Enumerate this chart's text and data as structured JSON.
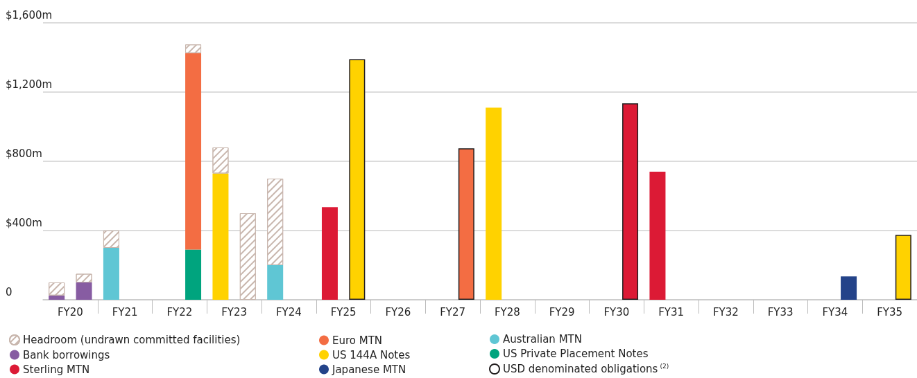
{
  "chart_data": {
    "type": "bar",
    "stacked": true,
    "categories": [
      "FY20",
      null,
      "FY21",
      null,
      "FY22",
      null,
      "FY23",
      null,
      "FY24",
      null,
      "FY25",
      null,
      "FY26",
      null,
      "FY27",
      null,
      "FY28",
      null,
      "FY29",
      null,
      "FY30",
      null,
      "FY31",
      null,
      "FY32",
      null,
      "FY33",
      null,
      "FY34",
      null,
      "FY35",
      null
    ],
    "series": [
      {
        "name": "Bank borrowings",
        "color": "#875ca2",
        "values": [
          25,
          100,
          null,
          null,
          null,
          null,
          null,
          null,
          null,
          null,
          null,
          null,
          null,
          null,
          null,
          null,
          null,
          null,
          null,
          null,
          null,
          null,
          null,
          null,
          null,
          null,
          null,
          null,
          null,
          null,
          null,
          null
        ]
      },
      {
        "name": "Australian MTN",
        "color": "#5fc6d4",
        "values": [
          null,
          null,
          300,
          null,
          null,
          null,
          null,
          null,
          200,
          null,
          null,
          null,
          null,
          null,
          null,
          null,
          null,
          null,
          null,
          null,
          null,
          null,
          null,
          null,
          null,
          null,
          null,
          null,
          null,
          null,
          null,
          null
        ]
      },
      {
        "name": "US Private Placement Notes",
        "color": "#00a47e",
        "values": [
          null,
          null,
          null,
          null,
          null,
          290,
          null,
          null,
          null,
          null,
          null,
          null,
          null,
          null,
          null,
          null,
          null,
          null,
          null,
          null,
          null,
          null,
          null,
          null,
          null,
          null,
          null,
          null,
          null,
          null,
          null,
          null
        ]
      },
      {
        "name": "Euro MTN",
        "color": "#f36d43",
        "values": [
          null,
          null,
          null,
          null,
          null,
          1135,
          null,
          null,
          null,
          null,
          null,
          null,
          null,
          null,
          null,
          null,
          null,
          null,
          null,
          null,
          null,
          null,
          null,
          null,
          null,
          null,
          null,
          null,
          null,
          null,
          null,
          null
        ]
      },
      {
        "name": "US 144A Notes",
        "color": "#ffd200",
        "values": [
          null,
          null,
          null,
          null,
          null,
          null,
          730,
          null,
          null,
          null,
          null,
          null,
          null,
          null,
          null,
          null,
          1110,
          null,
          null,
          null,
          null,
          null,
          null,
          null,
          null,
          null,
          null,
          null,
          null,
          null,
          null,
          null
        ]
      },
      {
        "name": "Sterling MTN",
        "color": "#dc1a35",
        "values": [
          null,
          null,
          null,
          null,
          null,
          null,
          null,
          null,
          null,
          null,
          535,
          null,
          null,
          null,
          null,
          null,
          null,
          null,
          null,
          null,
          null,
          null,
          740,
          null,
          null,
          null,
          null,
          null,
          null,
          null,
          null,
          null
        ]
      },
      {
        "name": "Japanese MTN",
        "color": "#244389",
        "values": [
          null,
          null,
          null,
          null,
          null,
          null,
          null,
          null,
          null,
          null,
          null,
          null,
          null,
          null,
          null,
          null,
          null,
          null,
          null,
          null,
          null,
          null,
          null,
          null,
          null,
          null,
          null,
          null,
          null,
          135,
          null,
          null
        ]
      },
      {
        "name": "Headroom (undrawn committed facilities)",
        "color": "#c8b6ad",
        "line_style": "dashed",
        "values": [
          75,
          50,
          100,
          null,
          null,
          50,
          150,
          500,
          500,
          null,
          null,
          null,
          null,
          null,
          null,
          null,
          null,
          null,
          null,
          null,
          null,
          null,
          null,
          null,
          null,
          null,
          null,
          null,
          null,
          null,
          null,
          null
        ]
      },
      {
        "color": "#f36d43",
        "line_style": "solid",
        "values": [
          null,
          null,
          null,
          null,
          null,
          null,
          null,
          null,
          null,
          null,
          null,
          null,
          null,
          null,
          null,
          875,
          null,
          null,
          null,
          null,
          null,
          null,
          null,
          null,
          null,
          null,
          null,
          null,
          null,
          null,
          null,
          null
        ]
      },
      {
        "color": "#ffd200",
        "line_style": "solid",
        "values": [
          null,
          null,
          null,
          null,
          null,
          null,
          null,
          null,
          null,
          null,
          null,
          1390,
          null,
          null,
          null,
          null,
          null,
          null,
          null,
          null,
          null,
          null,
          null,
          null,
          null,
          null,
          null,
          null,
          null,
          null,
          null,
          375
        ]
      },
      {
        "color": "#dc1a35",
        "line_style": "solid",
        "values": [
          null,
          null,
          null,
          null,
          null,
          null,
          null,
          null,
          null,
          null,
          null,
          null,
          null,
          null,
          null,
          null,
          null,
          null,
          null,
          null,
          null,
          1135,
          null,
          null,
          null,
          null,
          null,
          null,
          null,
          null,
          null,
          null
        ]
      },
      {
        "name": "USD denominated obligations$^{(2)}$",
        "color": "#231f20",
        "line_style": "solid",
        "values": [
          null,
          null,
          null,
          null,
          null,
          null,
          null,
          null,
          null,
          null,
          null,
          null,
          null,
          null,
          null,
          null,
          null,
          null,
          null,
          null,
          null,
          null,
          null,
          null,
          null,
          null,
          null,
          null,
          null,
          null,
          null,
          null
        ]
      }
    ],
    "ylim": [
      0,
      1600
    ],
    "yticks": [
      {
        "value": 0,
        "label": "0"
      },
      {
        "value": 400,
        "label": "$400m"
      },
      {
        "value": 800,
        "label": "$800m"
      },
      {
        "value": 1200,
        "label": "$1,200m"
      },
      {
        "value": 1600,
        "label": "$1,600m"
      }
    ],
    "grid": "y",
    "legend": "bottom left"
  }
}
